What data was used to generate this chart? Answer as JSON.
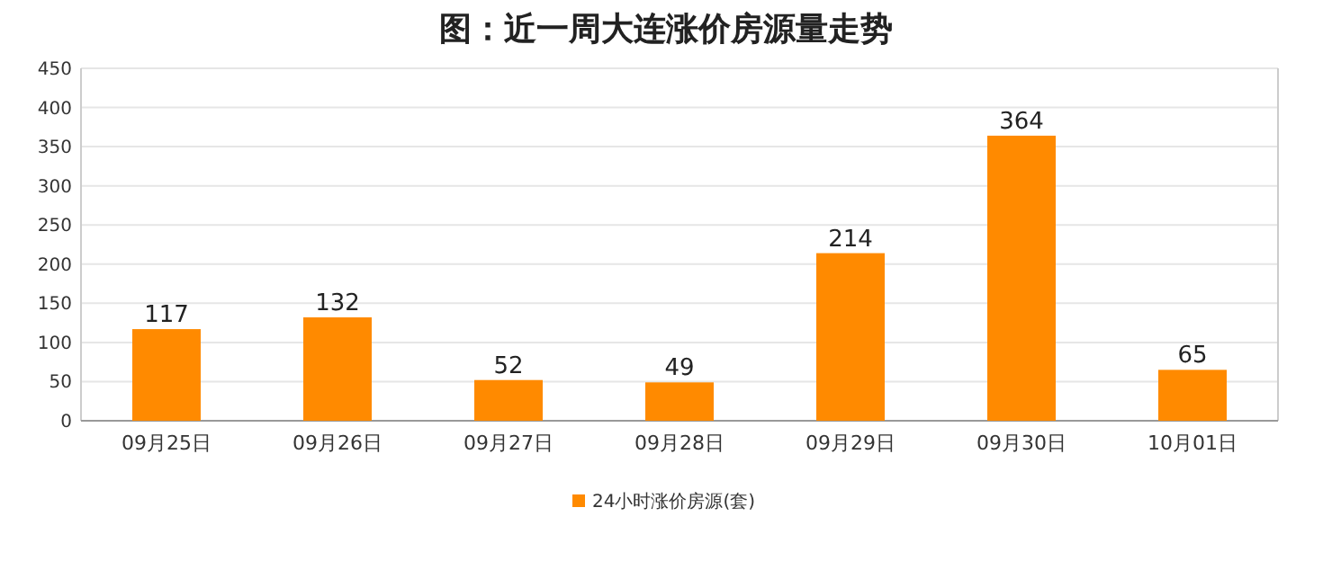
{
  "chart_data": {
    "type": "bar",
    "title": "图：近一周大连涨价房源量走势",
    "categories": [
      "09月25日",
      "09月26日",
      "09月27日",
      "09月28日",
      "09月29日",
      "09月30日",
      "10月01日"
    ],
    "series": [
      {
        "name": "24小时涨价房源(套)",
        "color": "#ff8a00",
        "values": [
          117,
          132,
          52,
          49,
          214,
          364,
          65
        ]
      }
    ],
    "ylim": [
      0,
      450
    ],
    "yticks": [
      0,
      50,
      100,
      150,
      200,
      250,
      300,
      350,
      400,
      450
    ],
    "grid": "y",
    "legend": "bottom",
    "data_labels": true
  }
}
